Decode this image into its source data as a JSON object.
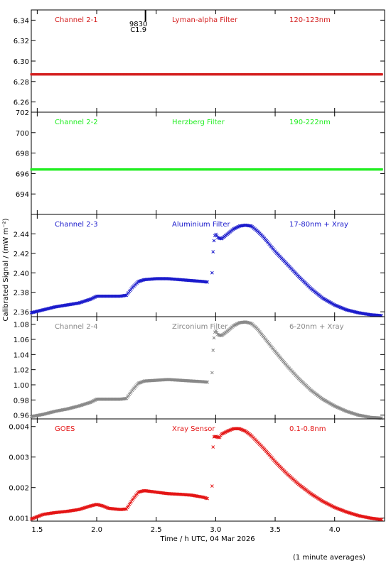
{
  "chart_data": [
    {
      "type": "scatter",
      "labels": {
        "channel": "Channel 2-1",
        "filter": "Lyman-alpha Filter",
        "band": "120-123nm"
      },
      "color": "#d42020",
      "ylim": [
        6.25,
        6.35
      ],
      "yticks": [
        "6.26",
        "6.28",
        "6.30",
        "6.32",
        "6.34"
      ],
      "series": [
        {
          "x": [
            1.45,
            4.4
          ],
          "y": [
            6.287,
            6.287
          ]
        }
      ],
      "annotation": {
        "x": 2.41,
        "top": "9830",
        "bottom": "C1.9"
      }
    },
    {
      "type": "scatter",
      "labels": {
        "channel": "Channel 2-2",
        "filter": "Herzberg Filter",
        "band": "190-222nm"
      },
      "color": "#22ee22",
      "ylim": [
        692,
        702
      ],
      "yticks": [
        "694",
        "696",
        "698",
        "700",
        "702"
      ],
      "series": [
        {
          "x": [
            1.45,
            4.4
          ],
          "y": [
            696.4,
            696.4
          ]
        }
      ]
    },
    {
      "type": "scatter",
      "labels": {
        "channel": "Channel 2-3",
        "filter": "Aluminium Filter",
        "band": "17-80nm + Xray"
      },
      "color": "#1a1acc",
      "ylim": [
        2.355,
        2.46
      ],
      "yticks": [
        "2.36",
        "2.38",
        "2.40",
        "2.42",
        "2.44"
      ],
      "series": [
        {
          "x": [
            1.45,
            1.55,
            1.65,
            1.75,
            1.85,
            1.95,
            2.0,
            2.1,
            2.2,
            2.25,
            2.3,
            2.35,
            2.4,
            2.5,
            2.6,
            2.7,
            2.8,
            2.9,
            2.96,
            2.97,
            2.98,
            2.99,
            3.0,
            3.02,
            3.05,
            3.1,
            3.15,
            3.2,
            3.25,
            3.3,
            3.35,
            3.4,
            3.5,
            3.6,
            3.7,
            3.8,
            3.9,
            4.0,
            4.1,
            4.2,
            4.3,
            4.4
          ],
          "y": [
            2.359,
            2.362,
            2.365,
            2.367,
            2.369,
            2.373,
            2.376,
            2.376,
            2.376,
            2.377,
            2.385,
            2.391,
            2.393,
            2.394,
            2.394,
            2.393,
            2.392,
            2.391,
            2.39,
            2.4,
            2.427,
            2.437,
            2.44,
            2.436,
            2.435,
            2.44,
            2.445,
            2.448,
            2.449,
            2.448,
            2.443,
            2.437,
            2.422,
            2.409,
            2.396,
            2.384,
            2.374,
            2.367,
            2.362,
            2.359,
            2.357,
            2.356
          ]
        }
      ]
    },
    {
      "type": "scatter",
      "labels": {
        "channel": "Channel 2-4",
        "filter": "Zirconium Filter",
        "band": "6-20nm + Xray"
      },
      "color": "#888888",
      "ylim": [
        0.955,
        1.09
      ],
      "yticks": [
        "0.96",
        "0.98",
        "1.00",
        "1.02",
        "1.04",
        "1.06",
        "1.08"
      ],
      "series": [
        {
          "x": [
            1.45,
            1.55,
            1.65,
            1.75,
            1.85,
            1.95,
            2.0,
            2.1,
            2.2,
            2.25,
            2.3,
            2.35,
            2.4,
            2.5,
            2.6,
            2.7,
            2.8,
            2.9,
            2.96,
            2.97,
            2.98,
            2.99,
            3.0,
            3.02,
            3.05,
            3.1,
            3.15,
            3.2,
            3.25,
            3.3,
            3.35,
            3.4,
            3.5,
            3.6,
            3.7,
            3.8,
            3.9,
            4.0,
            4.1,
            4.2,
            4.3,
            4.4
          ],
          "y": [
            0.958,
            0.961,
            0.965,
            0.968,
            0.972,
            0.977,
            0.981,
            0.981,
            0.981,
            0.982,
            0.993,
            1.002,
            1.005,
            1.006,
            1.007,
            1.006,
            1.005,
            1.004,
            1.003,
            1.016,
            1.053,
            1.068,
            1.072,
            1.066,
            1.065,
            1.071,
            1.078,
            1.082,
            1.083,
            1.081,
            1.074,
            1.064,
            1.044,
            1.025,
            1.008,
            0.993,
            0.981,
            0.972,
            0.965,
            0.96,
            0.957,
            0.956
          ]
        }
      ]
    },
    {
      "type": "scatter",
      "labels": {
        "channel": "GOES",
        "filter": "Xray Sensor",
        "band": "0.1-0.8nm"
      },
      "color": "#e41414",
      "ylim": [
        0.0009,
        0.00425
      ],
      "yticks": [
        "0.001",
        "0.002",
        "0.003",
        "0.004"
      ],
      "series": [
        {
          "x": [
            1.45,
            1.55,
            1.65,
            1.75,
            1.85,
            1.95,
            2.0,
            2.05,
            2.1,
            2.2,
            2.25,
            2.3,
            2.35,
            2.4,
            2.5,
            2.6,
            2.7,
            2.8,
            2.9,
            2.96,
            2.97,
            2.98,
            3.0,
            3.03,
            3.05,
            3.1,
            3.15,
            3.2,
            3.25,
            3.3,
            3.35,
            3.4,
            3.5,
            3.6,
            3.7,
            3.8,
            3.9,
            4.0,
            4.1,
            4.2,
            4.3,
            4.4
          ],
          "y": [
            0.00097,
            0.00112,
            0.00118,
            0.00122,
            0.00128,
            0.0014,
            0.00145,
            0.0014,
            0.00132,
            0.00128,
            0.0013,
            0.0016,
            0.00185,
            0.0019,
            0.00185,
            0.0018,
            0.00178,
            0.00175,
            0.00168,
            0.0016,
            0.00205,
            0.00365,
            0.00368,
            0.00363,
            0.00375,
            0.00385,
            0.00393,
            0.00393,
            0.00385,
            0.0037,
            0.0035,
            0.0033,
            0.00285,
            0.00245,
            0.0021,
            0.0018,
            0.00155,
            0.00135,
            0.0012,
            0.00108,
            0.001,
            0.00095
          ]
        }
      ]
    }
  ],
  "axes": {
    "xlim": [
      1.45,
      4.42
    ],
    "xticks": [
      "1.5",
      "2.0",
      "2.5",
      "3.0",
      "3.5",
      "4.0"
    ],
    "xlabel": "Time / h UTC, 04 Mar 2026",
    "ylabel": "Calibrated Signal / (mW m⁻²)"
  },
  "footnote": "(1 minute averages)"
}
